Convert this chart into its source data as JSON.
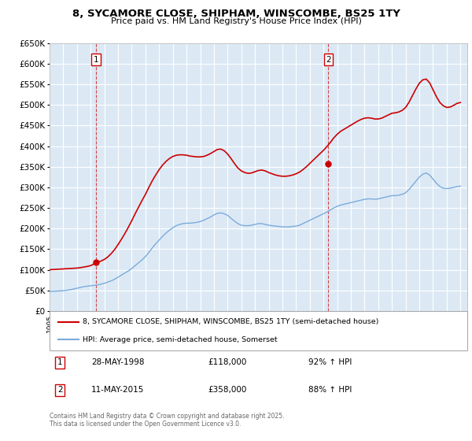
{
  "title": "8, SYCAMORE CLOSE, SHIPHAM, WINSCOMBE, BS25 1TY",
  "subtitle": "Price paid vs. HM Land Registry's House Price Index (HPI)",
  "property_label": "8, SYCAMORE CLOSE, SHIPHAM, WINSCOMBE, BS25 1TY (semi-detached house)",
  "hpi_label": "HPI: Average price, semi-detached house, Somerset",
  "property_color": "#cc0000",
  "hpi_color": "#7aabdb",
  "bg_color": "#dce9f5",
  "annotation1_label": "1",
  "annotation1_date": "28-MAY-1998",
  "annotation1_price": "£118,000",
  "annotation1_hpi": "92% ↑ HPI",
  "annotation2_label": "2",
  "annotation2_date": "11-MAY-2015",
  "annotation2_price": "£358,000",
  "annotation2_hpi": "88% ↑ HPI",
  "footnote": "Contains HM Land Registry data © Crown copyright and database right 2025.\nThis data is licensed under the Open Government Licence v3.0.",
  "ylim": [
    0,
    650000
  ],
  "yticks": [
    0,
    50000,
    100000,
    150000,
    200000,
    250000,
    300000,
    350000,
    400000,
    450000,
    500000,
    550000,
    600000,
    650000
  ],
  "xlim_start": 1995.0,
  "xlim_end": 2025.5,
  "purchase1_x": 1998.4,
  "purchase1_y": 118000,
  "purchase2_x": 2015.36,
  "purchase2_y": 358000,
  "vline1_x": 1998.4,
  "vline2_x": 2015.36,
  "hpi_x": [
    1995.0,
    1995.25,
    1995.5,
    1995.75,
    1996.0,
    1996.25,
    1996.5,
    1996.75,
    1997.0,
    1997.25,
    1997.5,
    1997.75,
    1998.0,
    1998.25,
    1998.5,
    1998.75,
    1999.0,
    1999.25,
    1999.5,
    1999.75,
    2000.0,
    2000.25,
    2000.5,
    2000.75,
    2001.0,
    2001.25,
    2001.5,
    2001.75,
    2002.0,
    2002.25,
    2002.5,
    2002.75,
    2003.0,
    2003.25,
    2003.5,
    2003.75,
    2004.0,
    2004.25,
    2004.5,
    2004.75,
    2005.0,
    2005.25,
    2005.5,
    2005.75,
    2006.0,
    2006.25,
    2006.5,
    2006.75,
    2007.0,
    2007.25,
    2007.5,
    2007.75,
    2008.0,
    2008.25,
    2008.5,
    2008.75,
    2009.0,
    2009.25,
    2009.5,
    2009.75,
    2010.0,
    2010.25,
    2010.5,
    2010.75,
    2011.0,
    2011.25,
    2011.5,
    2011.75,
    2012.0,
    2012.25,
    2012.5,
    2012.75,
    2013.0,
    2013.25,
    2013.5,
    2013.75,
    2014.0,
    2014.25,
    2014.5,
    2014.75,
    2015.0,
    2015.25,
    2015.5,
    2015.75,
    2016.0,
    2016.25,
    2016.5,
    2016.75,
    2017.0,
    2017.25,
    2017.5,
    2017.75,
    2018.0,
    2018.25,
    2018.5,
    2018.75,
    2019.0,
    2019.25,
    2019.5,
    2019.75,
    2020.0,
    2020.25,
    2020.5,
    2020.75,
    2021.0,
    2021.25,
    2021.5,
    2021.75,
    2022.0,
    2022.25,
    2022.5,
    2022.75,
    2023.0,
    2023.25,
    2023.5,
    2023.75,
    2024.0,
    2024.25,
    2024.5,
    2024.75,
    2025.0
  ],
  "hpi_y": [
    47000,
    47500,
    48000,
    48500,
    49000,
    50000,
    51500,
    53000,
    55000,
    57000,
    59000,
    60000,
    61000,
    62000,
    63000,
    65000,
    67000,
    70000,
    73000,
    77000,
    82000,
    87000,
    92000,
    97000,
    103000,
    110000,
    117000,
    124000,
    132000,
    142000,
    153000,
    163000,
    172000,
    181000,
    189000,
    196000,
    202000,
    207000,
    210000,
    212000,
    213000,
    213000,
    214000,
    215000,
    217000,
    220000,
    224000,
    228000,
    233000,
    237000,
    238000,
    236000,
    232000,
    225000,
    218000,
    212000,
    208000,
    207000,
    207000,
    208000,
    210000,
    212000,
    212000,
    210000,
    208000,
    207000,
    206000,
    205000,
    204000,
    204000,
    204000,
    205000,
    206000,
    208000,
    212000,
    216000,
    220000,
    224000,
    228000,
    232000,
    236000,
    240000,
    245000,
    250000,
    254000,
    257000,
    259000,
    261000,
    263000,
    265000,
    267000,
    269000,
    271000,
    272000,
    272000,
    271000,
    272000,
    274000,
    276000,
    278000,
    280000,
    280000,
    281000,
    283000,
    287000,
    295000,
    305000,
    315000,
    325000,
    332000,
    335000,
    330000,
    320000,
    310000,
    302000,
    298000,
    297000,
    298000,
    300000,
    302000,
    303000
  ],
  "prop_x": [
    1995.0,
    1995.25,
    1995.5,
    1995.75,
    1996.0,
    1996.25,
    1996.5,
    1996.75,
    1997.0,
    1997.25,
    1997.5,
    1997.75,
    1998.0,
    1998.25,
    1998.5,
    1998.75,
    1999.0,
    1999.25,
    1999.5,
    1999.75,
    2000.0,
    2000.25,
    2000.5,
    2000.75,
    2001.0,
    2001.25,
    2001.5,
    2001.75,
    2002.0,
    2002.25,
    2002.5,
    2002.75,
    2003.0,
    2003.25,
    2003.5,
    2003.75,
    2004.0,
    2004.25,
    2004.5,
    2004.75,
    2005.0,
    2005.25,
    2005.5,
    2005.75,
    2006.0,
    2006.25,
    2006.5,
    2006.75,
    2007.0,
    2007.25,
    2007.5,
    2007.75,
    2008.0,
    2008.25,
    2008.5,
    2008.75,
    2009.0,
    2009.25,
    2009.5,
    2009.75,
    2010.0,
    2010.25,
    2010.5,
    2010.75,
    2011.0,
    2011.25,
    2011.5,
    2011.75,
    2012.0,
    2012.25,
    2012.5,
    2012.75,
    2013.0,
    2013.25,
    2013.5,
    2013.75,
    2014.0,
    2014.25,
    2014.5,
    2014.75,
    2015.0,
    2015.25,
    2015.5,
    2015.75,
    2016.0,
    2016.25,
    2016.5,
    2016.75,
    2017.0,
    2017.25,
    2017.5,
    2017.75,
    2018.0,
    2018.25,
    2018.5,
    2018.75,
    2019.0,
    2019.25,
    2019.5,
    2019.75,
    2020.0,
    2020.25,
    2020.5,
    2020.75,
    2021.0,
    2021.25,
    2021.5,
    2021.75,
    2022.0,
    2022.25,
    2022.5,
    2022.75,
    2023.0,
    2023.25,
    2023.5,
    2023.75,
    2024.0,
    2024.25,
    2024.5,
    2024.75,
    2025.0
  ],
  "prop_y": [
    100000,
    100500,
    101000,
    101500,
    102000,
    102500,
    103000,
    103500,
    104000,
    105000,
    106500,
    108000,
    110000,
    114000,
    118000,
    121000,
    125000,
    131000,
    139000,
    149000,
    161000,
    174000,
    188000,
    203000,
    219000,
    236000,
    252000,
    268000,
    283000,
    300000,
    316000,
    330000,
    343000,
    354000,
    363000,
    370000,
    375000,
    378000,
    379000,
    379000,
    378000,
    376000,
    375000,
    374000,
    374000,
    375000,
    378000,
    382000,
    387000,
    392000,
    393000,
    389000,
    381000,
    370000,
    358000,
    347000,
    340000,
    336000,
    334000,
    335000,
    338000,
    341000,
    342000,
    340000,
    336000,
    333000,
    330000,
    328000,
    327000,
    327000,
    328000,
    330000,
    333000,
    337000,
    343000,
    350000,
    358000,
    366000,
    374000,
    382000,
    390000,
    399000,
    409000,
    420000,
    429000,
    436000,
    441000,
    446000,
    451000,
    456000,
    461000,
    465000,
    468000,
    469000,
    468000,
    466000,
    466000,
    468000,
    472000,
    476000,
    480000,
    481000,
    483000,
    487000,
    494000,
    507000,
    523000,
    539000,
    553000,
    561000,
    563000,
    554000,
    537000,
    520000,
    506000,
    498000,
    494000,
    495000,
    499000,
    504000,
    506000
  ]
}
